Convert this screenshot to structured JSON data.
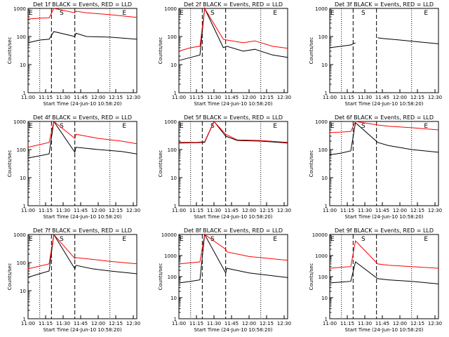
{
  "axis": {
    "ylabel": "Counts/sec",
    "xlabel": "Start Time (24-Jun-10 10:58:20)",
    "xticks": [
      "11:00",
      "11:15",
      "11:30",
      "11:45",
      "12:00",
      "12:15",
      "12:30"
    ],
    "yticks": [
      "1",
      "10",
      "100",
      "1000",
      "10000"
    ]
  },
  "markers": {
    "E": "E",
    "S": "S"
  },
  "colors": {
    "events": "#000000",
    "lld": "#ff0000"
  },
  "chart_data": [
    {
      "type": "line",
      "title": "Det 1f BLACK = Events, RED = LLD",
      "ylim": [
        1,
        1000
      ],
      "xlim": [
        "11:00",
        "12:33"
      ],
      "scale": "log",
      "series": [
        {
          "name": "Events",
          "x": [
            "11:00",
            "11:10",
            "11:18",
            "11:22",
            "11:40",
            "11:41",
            "11:50",
            "12:10",
            "12:33"
          ],
          "y": [
            60,
            75,
            80,
            150,
            100,
            130,
            100,
            95,
            80
          ]
        },
        {
          "name": "LLD",
          "x": [
            "11:00",
            "11:10",
            "11:18",
            "11:22",
            "11:40",
            "11:41",
            "11:50",
            "12:10",
            "12:33"
          ],
          "y": [
            420,
            450,
            460,
            1000,
            700,
            800,
            700,
            600,
            480
          ]
        }
      ]
    },
    {
      "type": "line",
      "title": "Det 2f BLACK = Events, RED = LLD",
      "ylim": [
        1,
        1000
      ],
      "xlim": [
        "11:00",
        "12:33"
      ],
      "scale": "log",
      "series": [
        {
          "name": "Events",
          "x": [
            "11:00",
            "11:10",
            "11:18",
            "11:22",
            "11:38",
            "11:41",
            "11:55",
            "12:05",
            "12:20",
            "12:33"
          ],
          "y": [
            14,
            18,
            22,
            1000,
            40,
            45,
            30,
            35,
            22,
            18
          ]
        },
        {
          "name": "LLD",
          "x": [
            "11:00",
            "11:10",
            "11:18",
            "11:22",
            "11:38",
            "11:41",
            "11:55",
            "12:05",
            "12:20",
            "12:33"
          ],
          "y": [
            30,
            40,
            45,
            1000,
            80,
            75,
            60,
            70,
            45,
            38
          ]
        }
      ]
    },
    {
      "type": "line",
      "title": "Det 3f BLACK = Events, RED = LLD",
      "ylim": [
        1,
        1000
      ],
      "xlim": [
        "11:00",
        "12:33"
      ],
      "scale": "log",
      "series": [
        {
          "name": "Events",
          "x": [
            "11:00",
            "11:10",
            "11:18",
            "11:22"
          ],
          "y": [
            40,
            45,
            50,
            60
          ]
        },
        {
          "name": "Events",
          "x": [
            "11:41",
            "11:45",
            "12:00",
            "12:15",
            "12:33"
          ],
          "y": [
            90,
            85,
            75,
            65,
            55
          ]
        }
      ]
    },
    {
      "type": "line",
      "title": "Det 4f BLACK = Events, RED = LLD",
      "ylim": [
        1,
        1000
      ],
      "xlim": [
        "11:00",
        "12:33"
      ],
      "scale": "log",
      "series": [
        {
          "name": "Events",
          "x": [
            "11:00",
            "11:10",
            "11:18",
            "11:22",
            "11:40",
            "11:41",
            "12:00",
            "12:20",
            "12:33"
          ],
          "y": [
            50,
            60,
            70,
            1000,
            80,
            120,
            100,
            85,
            70
          ]
        },
        {
          "name": "LLD",
          "x": [
            "11:00",
            "11:10",
            "11:18",
            "11:22",
            "11:40",
            "11:41",
            "12:00",
            "12:20",
            "12:33"
          ],
          "y": [
            120,
            150,
            180,
            1000,
            250,
            350,
            250,
            200,
            160
          ]
        }
      ]
    },
    {
      "type": "line",
      "title": "Det 5f BLACK = Events, RED = LLD",
      "ylim": [
        1,
        1000
      ],
      "xlim": [
        "11:00",
        "12:33"
      ],
      "scale": "log",
      "series": [
        {
          "name": "Events",
          "x": [
            "11:00",
            "11:15",
            "11:22",
            "11:30",
            "11:40",
            "11:50",
            "12:10",
            "12:33"
          ],
          "y": [
            170,
            175,
            180,
            1000,
            300,
            210,
            200,
            170
          ]
        },
        {
          "name": "LLD",
          "x": [
            "11:00",
            "11:15",
            "11:22",
            "11:30",
            "11:40",
            "11:50",
            "12:10",
            "12:33"
          ],
          "y": [
            180,
            180,
            190,
            1000,
            350,
            220,
            210,
            180
          ]
        }
      ]
    },
    {
      "type": "line",
      "title": "Det 6f BLACK = Events, RED = LLD",
      "ylim": [
        1,
        1000
      ],
      "xlim": [
        "11:00",
        "12:33"
      ],
      "scale": "log",
      "series": [
        {
          "name": "Events",
          "x": [
            "11:00",
            "11:10",
            "11:18",
            "11:22",
            "11:41",
            "11:50",
            "12:10",
            "12:33"
          ],
          "y": [
            65,
            75,
            90,
            900,
            180,
            140,
            100,
            80
          ]
        },
        {
          "name": "LLD",
          "x": [
            "11:00",
            "11:10",
            "11:18",
            "11:22",
            "11:41",
            "11:50",
            "12:10",
            "12:33"
          ],
          "y": [
            400,
            420,
            440,
            1000,
            750,
            680,
            600,
            500
          ]
        }
      ]
    },
    {
      "type": "line",
      "title": "Det 7f BLACK = Events, RED = LLD",
      "ylim": [
        1,
        1000
      ],
      "xlim": [
        "11:00",
        "12:33"
      ],
      "scale": "log",
      "series": [
        {
          "name": "Events",
          "x": [
            "11:00",
            "11:10",
            "11:18",
            "11:22",
            "11:40",
            "11:41",
            "11:55",
            "12:10",
            "12:33"
          ],
          "y": [
            30,
            40,
            50,
            1000,
            60,
            80,
            60,
            50,
            40
          ]
        },
        {
          "name": "LLD",
          "x": [
            "11:00",
            "11:10",
            "11:18",
            "11:22",
            "11:40",
            "11:41",
            "11:55",
            "12:10",
            "12:33"
          ],
          "y": [
            60,
            75,
            90,
            1000,
            140,
            150,
            130,
            110,
            90
          ]
        }
      ]
    },
    {
      "type": "line",
      "title": "Det 8f BLACK = Events, RED = LLD",
      "ylim": [
        1,
        10000
      ],
      "xlim": [
        "11:00",
        "12:33"
      ],
      "scale": "log",
      "series": [
        {
          "name": "Events",
          "x": [
            "11:00",
            "11:10",
            "11:18",
            "11:22",
            "11:40",
            "11:41",
            "12:00",
            "12:20",
            "12:33"
          ],
          "y": [
            50,
            60,
            70,
            10000,
            150,
            250,
            150,
            110,
            90
          ]
        },
        {
          "name": "LLD",
          "x": [
            "11:00",
            "11:10",
            "11:18",
            "11:22",
            "11:40",
            "11:41",
            "12:00",
            "12:20",
            "12:33"
          ],
          "y": [
            400,
            450,
            500,
            10000,
            2000,
            1500,
            900,
            700,
            600
          ]
        }
      ]
    },
    {
      "type": "line",
      "title": "Det 9f BLACK = Events, RED = LLD",
      "ylim": [
        1,
        10000
      ],
      "xlim": [
        "11:00",
        "12:33"
      ],
      "scale": "log",
      "series": [
        {
          "name": "Events",
          "x": [
            "11:00",
            "11:10",
            "11:18",
            "11:22",
            "11:41",
            "11:50",
            "12:10",
            "12:33"
          ],
          "y": [
            50,
            55,
            60,
            500,
            80,
            70,
            60,
            45
          ]
        },
        {
          "name": "LLD",
          "x": [
            "11:00",
            "11:10",
            "11:18",
            "11:22",
            "11:41",
            "11:50",
            "12:10",
            "12:33"
          ],
          "y": [
            250,
            280,
            300,
            5000,
            400,
            350,
            300,
            250
          ]
        }
      ]
    }
  ]
}
